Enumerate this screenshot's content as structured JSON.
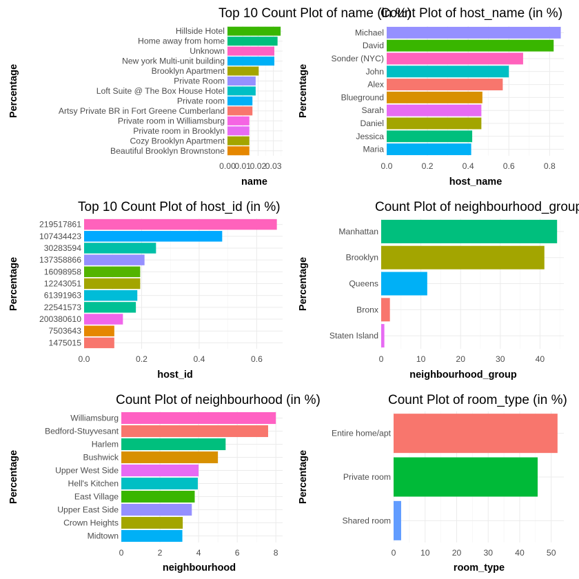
{
  "chart_data": [
    {
      "type": "bar",
      "orientation": "horizontal",
      "title": "Top 10 Count Plot of name (in %)",
      "xlabel": "name",
      "ylabel": "Percentage",
      "xlim": [
        0,
        0.036
      ],
      "xticks": [
        0,
        0.01,
        0.02,
        0.03
      ],
      "xtick_labels": [
        "0.00",
        "0.01",
        "0.02",
        "0.03"
      ],
      "grid": true,
      "categories": [
        "Hillside Hotel",
        "Home away from home",
        "Unknown",
        "New york Multi-unit building",
        "Brooklyn Apartment",
        "Private Room",
        "Loft Suite @ The Box House Hotel",
        "Private room",
        "Artsy Private BR in Fort Greene Cumberland",
        "Private room in Williamsburg",
        "Private room in Brooklyn",
        "Cozy Brooklyn Apartment",
        "Beautiful Brooklyn Brownstone"
      ],
      "values": [
        0.0347,
        0.0327,
        0.0306,
        0.0306,
        0.0204,
        0.0184,
        0.0184,
        0.0163,
        0.0163,
        0.0143,
        0.0143,
        0.0143,
        0.0143
      ],
      "colors": [
        "#39B600",
        "#00BF7D",
        "#FF61C3",
        "#00B0F6",
        "#A3A500",
        "#9590FF",
        "#00BFC4",
        "#00B0F6",
        "#F8766D",
        "#F564E3",
        "#E76BF3",
        "#A3A500",
        "#E58700"
      ]
    },
    {
      "type": "bar",
      "orientation": "horizontal",
      "title": "Count Plot of host_name (in %)",
      "xlabel": "host_name",
      "ylabel": "Percentage",
      "xlim": [
        0,
        0.87
      ],
      "xticks": [
        0,
        0.2,
        0.4,
        0.6,
        0.8
      ],
      "xtick_labels": [
        "0.0",
        "0.2",
        "0.4",
        "0.6",
        "0.8"
      ],
      "grid": true,
      "categories": [
        "Michael",
        "David",
        "Sonder (NYC)",
        "John",
        "Alex",
        "Blueground",
        "Sarah",
        "Daniel",
        "Jessica",
        "Maria"
      ],
      "values": [
        0.855,
        0.82,
        0.67,
        0.6,
        0.57,
        0.47,
        0.465,
        0.465,
        0.42,
        0.415
      ],
      "colors": [
        "#9590FF",
        "#39B600",
        "#FF62BC",
        "#00BFC4",
        "#F8766D",
        "#D89000",
        "#E76BF3",
        "#A3A500",
        "#00BF7D",
        "#00B0F6"
      ]
    },
    {
      "type": "bar",
      "orientation": "horizontal",
      "title": "Top 10 Count Plot of host_id (in %)",
      "xlabel": "host_id",
      "ylabel": "Percentage",
      "xlim": [
        0,
        0.69
      ],
      "xticks": [
        0,
        0.2,
        0.4,
        0.6
      ],
      "xtick_labels": [
        "0.0",
        "0.2",
        "0.4",
        "0.6"
      ],
      "grid": true,
      "categories": [
        "219517861",
        "107434423",
        "30283594",
        "137358866",
        "16098958",
        "12243051",
        "61391963",
        "22541573",
        "200380610",
        "7503643",
        "1475015"
      ],
      "values": [
        0.67,
        0.48,
        0.25,
        0.21,
        0.195,
        0.195,
        0.185,
        0.18,
        0.135,
        0.105,
        0.105
      ],
      "colors": [
        "#FF62BC",
        "#00A9FF",
        "#00BFA8",
        "#9590FF",
        "#53B400",
        "#A3A500",
        "#00BCD8",
        "#00C094",
        "#F066EA",
        "#E58700",
        "#F8766D"
      ]
    },
    {
      "type": "bar",
      "orientation": "horizontal",
      "title": "Count Plot of neighbourhood_group (in %)",
      "xlabel": "neighbourhood_group",
      "ylabel": "Percentage",
      "xlim": [
        0,
        46
      ],
      "xticks": [
        0,
        10,
        20,
        30,
        40
      ],
      "xtick_labels": [
        "0",
        "10",
        "20",
        "30",
        "40"
      ],
      "grid": true,
      "categories": [
        "Manhattan",
        "Brooklyn",
        "Queens",
        "Bronx",
        "Staten Island"
      ],
      "values": [
        44.3,
        41.1,
        11.6,
        2.2,
        0.8
      ],
      "colors": [
        "#00BF7D",
        "#A3A500",
        "#00B0F6",
        "#F8766D",
        "#E76BF3"
      ]
    },
    {
      "type": "bar",
      "orientation": "horizontal",
      "title": "Count Plot of neighbourhood (in %)",
      "xlabel": "neighbourhood",
      "ylabel": "Percentage",
      "xlim": [
        0,
        8.35
      ],
      "xticks": [
        0,
        2,
        4,
        6,
        8
      ],
      "xtick_labels": [
        "0",
        "2",
        "4",
        "6",
        "8"
      ],
      "grid": true,
      "categories": [
        "Williamsburg",
        "Bedford-Stuyvesant",
        "Harlem",
        "Bushwick",
        "Upper West Side",
        "Hell's Kitchen",
        "East Village",
        "Upper East Side",
        "Crown Heights",
        "Midtown"
      ],
      "values": [
        8.0,
        7.6,
        5.4,
        5.0,
        4.0,
        3.96,
        3.8,
        3.65,
        3.18,
        3.16
      ],
      "colors": [
        "#FF61C3",
        "#F8766D",
        "#00BF7D",
        "#D89000",
        "#E76BF3",
        "#00BFC4",
        "#39B600",
        "#9590FF",
        "#A3A500",
        "#00B0F6"
      ]
    },
    {
      "type": "bar",
      "orientation": "horizontal",
      "title": "Count Plot of room_type (in %)",
      "xlabel": "room_type",
      "ylabel": "Percentage",
      "xlim": [
        0,
        54
      ],
      "xticks": [
        0,
        10,
        20,
        30,
        40,
        50
      ],
      "xtick_labels": [
        "0",
        "10",
        "20",
        "30",
        "40",
        "50"
      ],
      "grid": true,
      "categories": [
        "Entire home/apt",
        "Private room",
        "Shared room"
      ],
      "values": [
        52.0,
        45.7,
        2.4
      ],
      "colors": [
        "#F8766D",
        "#00BA38",
        "#619CFF"
      ]
    }
  ]
}
